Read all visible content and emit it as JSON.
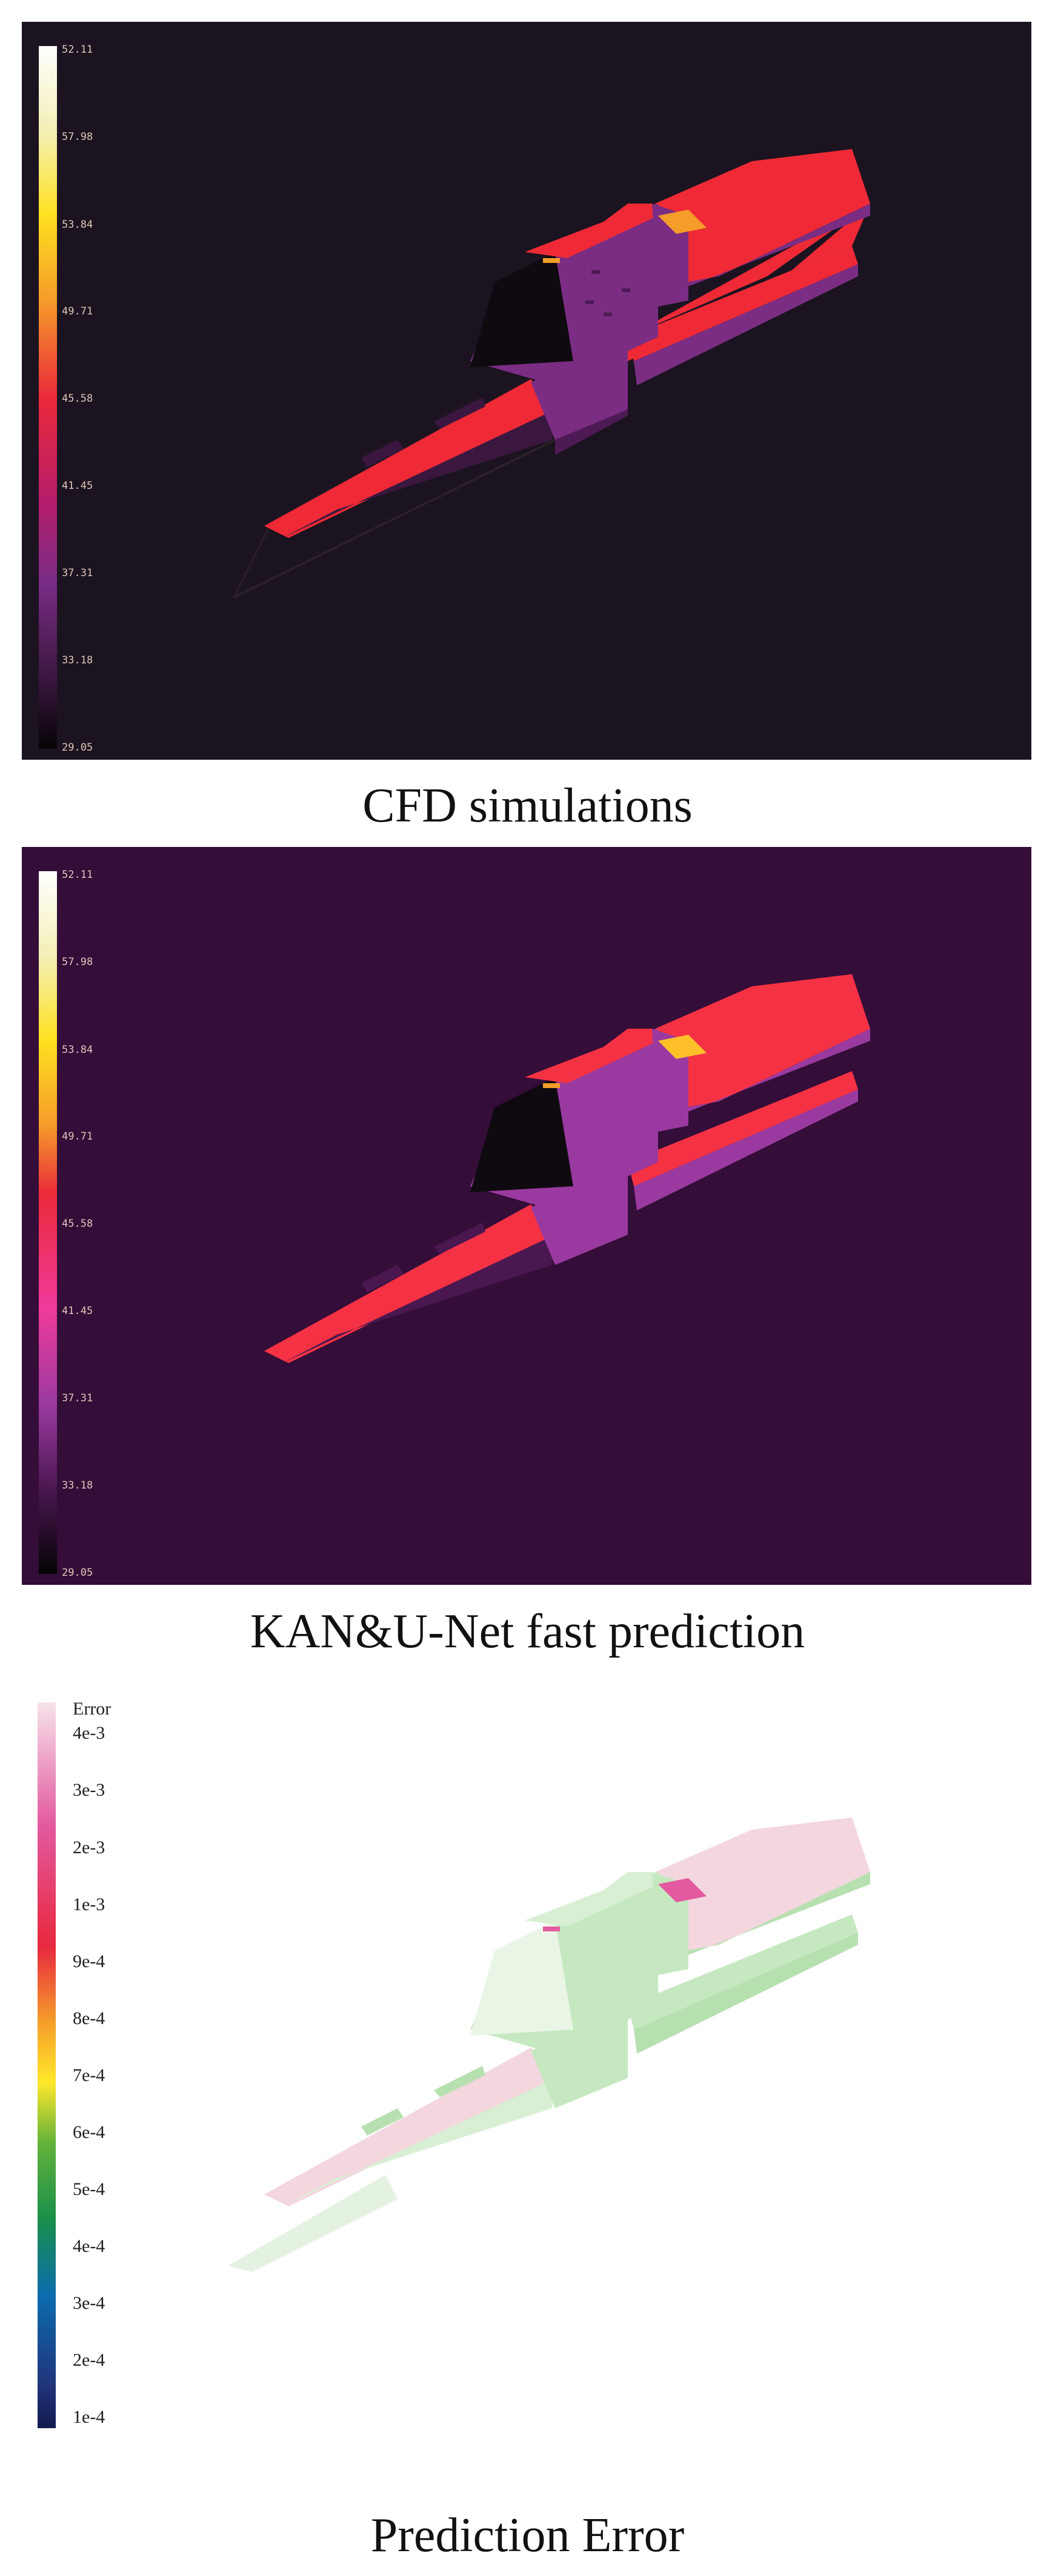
{
  "panels": [
    {
      "caption": "CFD simulations",
      "background": "#1c1320",
      "scale": [
        "52.11",
        "57.98",
        "53.84",
        "49.71",
        "45.58",
        "41.45",
        "37.31",
        "33.18",
        "29.05"
      ]
    },
    {
      "caption": "KAN&U-Net fast prediction",
      "background": "#340d38",
      "scale": [
        "52.11",
        "57.98",
        "53.84",
        "49.71",
        "45.58",
        "41.45",
        "37.31",
        "33.18",
        "29.05"
      ]
    },
    {
      "caption": "Prediction Error",
      "background": "#ffffff",
      "scale_title": "Error",
      "scale": [
        "4e-3",
        "3e-3",
        "2e-3",
        "1e-3",
        "9e-4",
        "8e-4",
        "7e-4",
        "6e-4",
        "5e-4",
        "4e-4",
        "3e-4",
        "2e-4",
        "1e-4"
      ]
    }
  ],
  "colors": {
    "heat_red": "#ef2a36",
    "heat_purple": "#7b2d83",
    "heat_dark": "#0f0a10",
    "error_green": "#c6e8c1",
    "error_pink": "#f3d6de"
  }
}
